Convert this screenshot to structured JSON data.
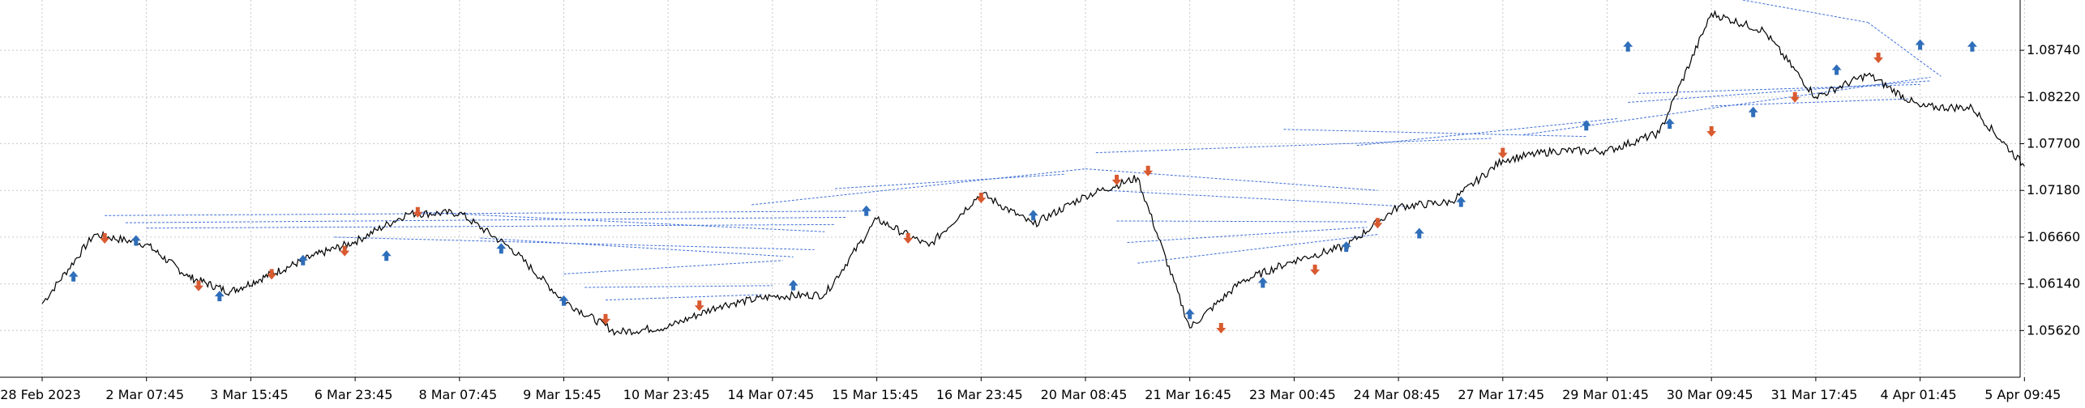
{
  "chart_data": {
    "type": "line",
    "title": "",
    "xlabel": "",
    "ylabel": "",
    "ylim": [
      1.051,
      1.093
    ],
    "grid": true,
    "x_ticks": [
      "28 Feb 2023",
      "2 Mar 07:45",
      "3 Mar 15:45",
      "6 Mar 23:45",
      "8 Mar 07:45",
      "9 Mar 15:45",
      "10 Mar 23:45",
      "14 Mar 07:45",
      "15 Mar 15:45",
      "16 Mar 23:45",
      "20 Mar 08:45",
      "21 Mar 16:45",
      "23 Mar 00:45",
      "24 Mar 08:45",
      "27 Mar 17:45",
      "29 Mar 01:45",
      "30 Mar 09:45",
      "31 Mar 17:45",
      "4 Apr 01:45",
      "5 Apr 09:45"
    ],
    "y_ticks": [
      1.0562,
      1.0614,
      1.0666,
      1.0718,
      1.077,
      1.0822,
      1.0874
    ],
    "series": [
      {
        "x": [
          0,
          0.5,
          1,
          1.4,
          1.8,
          2.2,
          2.6,
          3,
          3.5,
          4,
          4.5,
          5,
          5.5,
          6,
          6.5,
          7,
          7.5,
          8,
          8.5,
          9,
          9.5,
          10,
          10.5,
          11,
          11.5,
          12,
          12.5,
          13,
          13.5,
          14,
          14.5,
          15,
          15.5,
          16,
          16.5,
          17,
          17.5,
          18,
          18.5,
          19
        ],
        "y": [
          1.0592,
          1.0669,
          1.0658,
          1.0622,
          1.0605,
          1.0625,
          1.0645,
          1.0661,
          1.0692,
          1.0693,
          1.0653,
          1.0595,
          1.056,
          1.0566,
          1.059,
          1.06,
          1.0602,
          1.0686,
          1.0656,
          1.0715,
          1.068,
          1.0712,
          1.0732,
          1.0565,
          1.0617,
          1.064,
          1.0656,
          1.07,
          1.0705,
          1.0752,
          1.0762,
          1.0762,
          1.0782,
          1.0915,
          1.0896,
          1.0822,
          1.0847,
          1.0811,
          1.081,
          1.0745
        ]
      }
    ],
    "signals": [
      {
        "x": 0.3,
        "y": 1.0622,
        "dir": "buy"
      },
      {
        "x": 0.6,
        "y": 1.0665,
        "dir": "sell"
      },
      {
        "x": 0.9,
        "y": 1.0662,
        "dir": "buy"
      },
      {
        "x": 1.5,
        "y": 1.0612,
        "dir": "sell"
      },
      {
        "x": 1.7,
        "y": 1.06,
        "dir": "buy"
      },
      {
        "x": 2.2,
        "y": 1.0625,
        "dir": "sell"
      },
      {
        "x": 2.5,
        "y": 1.064,
        "dir": "buy"
      },
      {
        "x": 2.9,
        "y": 1.0651,
        "dir": "sell"
      },
      {
        "x": 3.3,
        "y": 1.0645,
        "dir": "buy"
      },
      {
        "x": 3.6,
        "y": 1.0694,
        "dir": "sell"
      },
      {
        "x": 4.4,
        "y": 1.0653,
        "dir": "buy"
      },
      {
        "x": 5.0,
        "y": 1.0595,
        "dir": "buy"
      },
      {
        "x": 5.4,
        "y": 1.0575,
        "dir": "sell"
      },
      {
        "x": 6.3,
        "y": 1.059,
        "dir": "sell"
      },
      {
        "x": 7.2,
        "y": 1.0612,
        "dir": "buy"
      },
      {
        "x": 7.9,
        "y": 1.0695,
        "dir": "buy"
      },
      {
        "x": 8.3,
        "y": 1.0665,
        "dir": "sell"
      },
      {
        "x": 9.0,
        "y": 1.071,
        "dir": "sell"
      },
      {
        "x": 9.5,
        "y": 1.069,
        "dir": "buy"
      },
      {
        "x": 10.3,
        "y": 1.073,
        "dir": "sell"
      },
      {
        "x": 10.6,
        "y": 1.074,
        "dir": "sell"
      },
      {
        "x": 11.0,
        "y": 1.058,
        "dir": "buy"
      },
      {
        "x": 11.3,
        "y": 1.0565,
        "dir": "sell"
      },
      {
        "x": 11.7,
        "y": 1.0615,
        "dir": "buy"
      },
      {
        "x": 12.2,
        "y": 1.063,
        "dir": "sell"
      },
      {
        "x": 12.5,
        "y": 1.0655,
        "dir": "buy"
      },
      {
        "x": 12.8,
        "y": 1.0682,
        "dir": "sell"
      },
      {
        "x": 13.2,
        "y": 1.067,
        "dir": "buy"
      },
      {
        "x": 13.6,
        "y": 1.0705,
        "dir": "buy"
      },
      {
        "x": 14.0,
        "y": 1.076,
        "dir": "sell"
      },
      {
        "x": 14.8,
        "y": 1.079,
        "dir": "buy"
      },
      {
        "x": 15.2,
        "y": 1.0878,
        "dir": "buy"
      },
      {
        "x": 15.6,
        "y": 1.0792,
        "dir": "buy"
      },
      {
        "x": 16.0,
        "y": 1.0784,
        "dir": "sell"
      },
      {
        "x": 16.4,
        "y": 1.0805,
        "dir": "buy"
      },
      {
        "x": 16.8,
        "y": 1.0822,
        "dir": "sell"
      },
      {
        "x": 17.2,
        "y": 1.0852,
        "dir": "buy"
      },
      {
        "x": 17.6,
        "y": 1.0866,
        "dir": "sell"
      },
      {
        "x": 18.0,
        "y": 1.088,
        "dir": "buy"
      },
      {
        "x": 18.5,
        "y": 1.0878,
        "dir": "buy"
      }
    ],
    "connectors": [
      [
        0.6,
        1.069,
        7.9,
        1.0695
      ],
      [
        0.8,
        1.0682,
        7.7,
        1.0688
      ],
      [
        1.0,
        1.0676,
        7.6,
        1.068
      ],
      [
        3.6,
        1.0694,
        7.5,
        1.0672
      ],
      [
        2.8,
        1.0666,
        7.4,
        1.0652
      ],
      [
        4.2,
        1.0665,
        7.2,
        1.0644
      ],
      [
        5.0,
        1.0625,
        7.1,
        1.064
      ],
      [
        5.2,
        1.061,
        7.0,
        1.0612
      ],
      [
        5.4,
        1.0596,
        6.9,
        1.0602
      ],
      [
        6.8,
        1.0702,
        10.0,
        1.0742
      ],
      [
        7.6,
        1.072,
        9.8,
        1.0736
      ],
      [
        10.0,
        1.0742,
        12.8,
        1.0718
      ],
      [
        10.2,
        1.0718,
        13.1,
        1.07
      ],
      [
        10.3,
        1.0684,
        12.7,
        1.0683
      ],
      [
        10.4,
        1.066,
        12.7,
        1.0677
      ],
      [
        10.5,
        1.0637,
        12.8,
        1.0669
      ],
      [
        10.1,
        1.076,
        13.9,
        1.0776
      ],
      [
        11.9,
        1.0786,
        14.8,
        1.0778
      ],
      [
        12.6,
        1.0768,
        15.1,
        1.0798
      ],
      [
        14.2,
        1.078,
        18.1,
        1.0844
      ],
      [
        15.2,
        1.0816,
        18.1,
        1.084
      ],
      [
        15.3,
        1.0826,
        18.0,
        1.0836
      ],
      [
        16.0,
        1.0812,
        17.9,
        1.082
      ],
      [
        16.3,
        1.093,
        17.5,
        1.0905
      ],
      [
        17.5,
        1.0905,
        18.2,
        1.0845
      ]
    ],
    "colors": {
      "price": "#000000",
      "buy_arrow": "#2f6eba",
      "sell_arrow": "#d95a30",
      "connector": "#3f6fd8",
      "grid": "#c9c9c9",
      "axis": "#000000"
    }
  }
}
